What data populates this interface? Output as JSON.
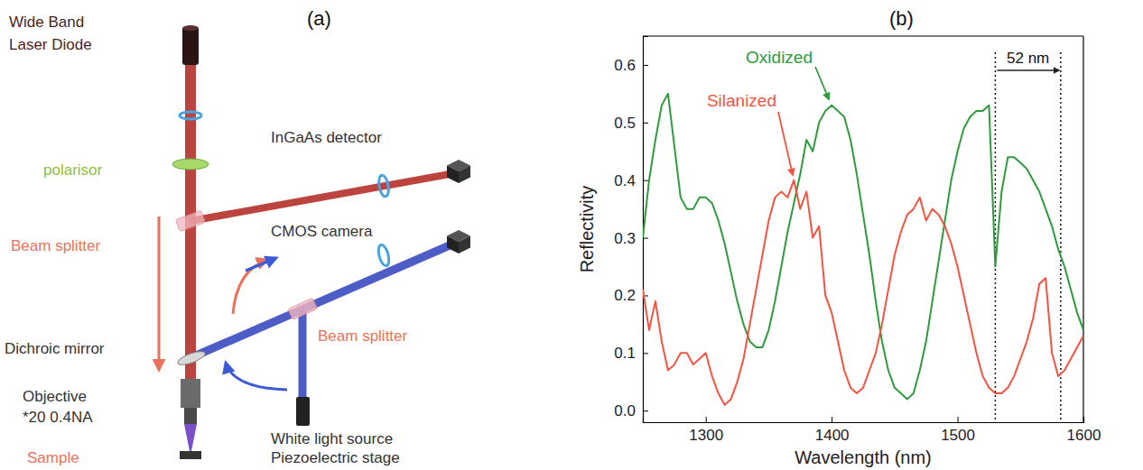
{
  "diagram": {
    "panel_label": "(a)",
    "labels": {
      "laser": [
        "Wide Band",
        "Laser Diode"
      ],
      "polarisor": "polarisor",
      "detector": "InGaAs detector",
      "beam_splitter_upper": "Beam splitter",
      "camera": "CMOS camera",
      "dichroic": "Dichroic mirror",
      "beam_splitter_lower": "Beam splitter",
      "objective": [
        "Objective",
        "*20 0.4NA"
      ],
      "light_source": "White light source",
      "sample": "Sample",
      "stage": "Piezoelectric stage"
    }
  },
  "chart_data": {
    "type": "line",
    "title": "(b)",
    "x_label": "Wavelength (nm)",
    "y_label": "Reflectivity",
    "x": [
      1250,
      1255,
      1260,
      1265,
      1270,
      1275,
      1280,
      1285,
      1290,
      1295,
      1300,
      1305,
      1310,
      1315,
      1320,
      1325,
      1330,
      1335,
      1340,
      1345,
      1350,
      1355,
      1360,
      1365,
      1370,
      1375,
      1380,
      1385,
      1390,
      1395,
      1400,
      1405,
      1410,
      1415,
      1420,
      1425,
      1430,
      1435,
      1440,
      1445,
      1450,
      1455,
      1460,
      1465,
      1470,
      1475,
      1480,
      1485,
      1490,
      1495,
      1500,
      1505,
      1510,
      1515,
      1520,
      1525,
      1530,
      1535,
      1540,
      1545,
      1550,
      1555,
      1560,
      1565,
      1570,
      1575,
      1580,
      1585,
      1590,
      1595,
      1600
    ],
    "series": [
      {
        "name": "Oxidized",
        "color": "#2e9b3e",
        "values": [
          0.3,
          0.4,
          0.47,
          0.53,
          0.55,
          0.46,
          0.37,
          0.35,
          0.35,
          0.37,
          0.37,
          0.36,
          0.33,
          0.29,
          0.24,
          0.19,
          0.15,
          0.12,
          0.11,
          0.11,
          0.14,
          0.19,
          0.25,
          0.31,
          0.36,
          0.41,
          0.47,
          0.45,
          0.5,
          0.52,
          0.53,
          0.52,
          0.51,
          0.47,
          0.41,
          0.34,
          0.27,
          0.19,
          0.12,
          0.07,
          0.04,
          0.03,
          0.02,
          0.03,
          0.07,
          0.12,
          0.19,
          0.26,
          0.33,
          0.4,
          0.45,
          0.49,
          0.51,
          0.52,
          0.52,
          0.53,
          0.25,
          0.38,
          0.44,
          0.44,
          0.43,
          0.42,
          0.4,
          0.38,
          0.35,
          0.32,
          0.28,
          0.25,
          0.21,
          0.17,
          0.14
        ]
      },
      {
        "name": "Silanized",
        "color": "#f4533f",
        "values": [
          0.21,
          0.14,
          0.19,
          0.12,
          0.07,
          0.08,
          0.1,
          0.1,
          0.08,
          0.09,
          0.1,
          0.06,
          0.03,
          0.01,
          0.02,
          0.05,
          0.09,
          0.15,
          0.21,
          0.27,
          0.33,
          0.37,
          0.38,
          0.37,
          0.4,
          0.35,
          0.38,
          0.3,
          0.32,
          0.2,
          0.17,
          0.12,
          0.07,
          0.04,
          0.03,
          0.04,
          0.07,
          0.1,
          0.15,
          0.21,
          0.27,
          0.31,
          0.34,
          0.35,
          0.37,
          0.33,
          0.35,
          0.34,
          0.32,
          0.29,
          0.25,
          0.2,
          0.15,
          0.1,
          0.06,
          0.04,
          0.03,
          0.03,
          0.04,
          0.06,
          0.09,
          0.12,
          0.16,
          0.22,
          0.23,
          0.1,
          0.06,
          0.07,
          0.09,
          0.11,
          0.13
        ]
      }
    ],
    "xlim": [
      1250,
      1600
    ],
    "xticks": [
      1300,
      1400,
      1500,
      1600
    ],
    "ylim": [
      -0.02,
      0.65
    ],
    "yticks": [
      {
        "value": 0,
        "label": "0.0"
      },
      0.1,
      0.2,
      0.3,
      0.4,
      0.5,
      0.6
    ],
    "grid": false,
    "annotations": [
      {
        "text": "52 nm",
        "x_start": 1530,
        "x_end": 1582
      }
    ]
  }
}
